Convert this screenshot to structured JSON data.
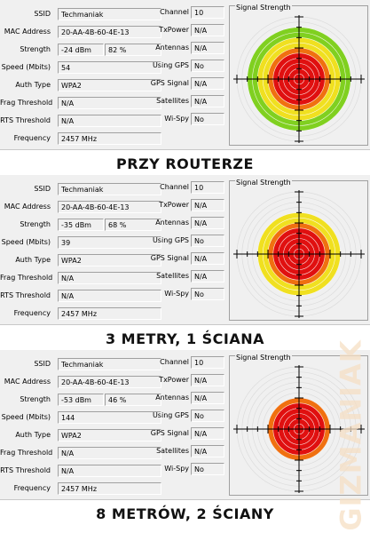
{
  "labels": {
    "ssid": "SSID",
    "mac": "MAC Address",
    "strength": "Strength",
    "speed": "Speed (Mbits)",
    "auth": "Auth Type",
    "frag": "Frag Threshold",
    "rts": "RTS Threshold",
    "freq": "Frequency",
    "channel": "Channel",
    "txpower": "TxPower",
    "antennas": "Antennas",
    "using_gps": "Using GPS",
    "gps_signal": "GPS Signal",
    "satellites": "Satellites",
    "wispy": "Wi-Spy",
    "signal_strength": "Signal Strength"
  },
  "panels": [
    {
      "ssid": "Techmaniak",
      "mac": "20-AA-4B-60-4E-13",
      "strength_dbm": "-24 dBm",
      "strength_pct": "82 %",
      "speed": "54",
      "auth": "WPA2",
      "frag": "N/A",
      "rts": "N/A",
      "freq": "2457 MHz",
      "channel": "10",
      "txpower": "N/A",
      "antennas": "N/A",
      "using_gps": "No",
      "gps_signal": "N/A",
      "satellites": "N/A",
      "wispy": "No",
      "signal_level": 0.82,
      "caption": "PRZY ROUTERZE"
    },
    {
      "ssid": "Techmaniak",
      "mac": "20-AA-4B-60-4E-13",
      "strength_dbm": "-35 dBm",
      "strength_pct": "68 %",
      "speed": "39",
      "auth": "WPA2",
      "frag": "N/A",
      "rts": "N/A",
      "freq": "2457 MHz",
      "channel": "10",
      "txpower": "N/A",
      "antennas": "N/A",
      "using_gps": "No",
      "gps_signal": "N/A",
      "satellites": "N/A",
      "wispy": "No",
      "signal_level": 0.68,
      "caption": "3 METRY, 1 ŚCIANA"
    },
    {
      "ssid": "Techmaniak",
      "mac": "20-AA-4B-60-4E-13",
      "strength_dbm": "-53 dBm",
      "strength_pct": "46 %",
      "speed": "144",
      "auth": "WPA2",
      "frag": "N/A",
      "rts": "N/A",
      "freq": "2457 MHz",
      "channel": "10",
      "txpower": "N/A",
      "antennas": "N/A",
      "using_gps": "No",
      "gps_signal": "N/A",
      "satellites": "N/A",
      "wispy": "No",
      "signal_level": 0.46,
      "caption": "8 METRÓW, 2 ŚCIANY"
    }
  ],
  "watermark": "GIZMANIAK",
  "colors": {
    "ring_red": "#e01010",
    "ring_orange": "#f07010",
    "ring_yellow": "#f0e020",
    "ring_green": "#80d020",
    "panel_bg": "#f0f0f0"
  }
}
